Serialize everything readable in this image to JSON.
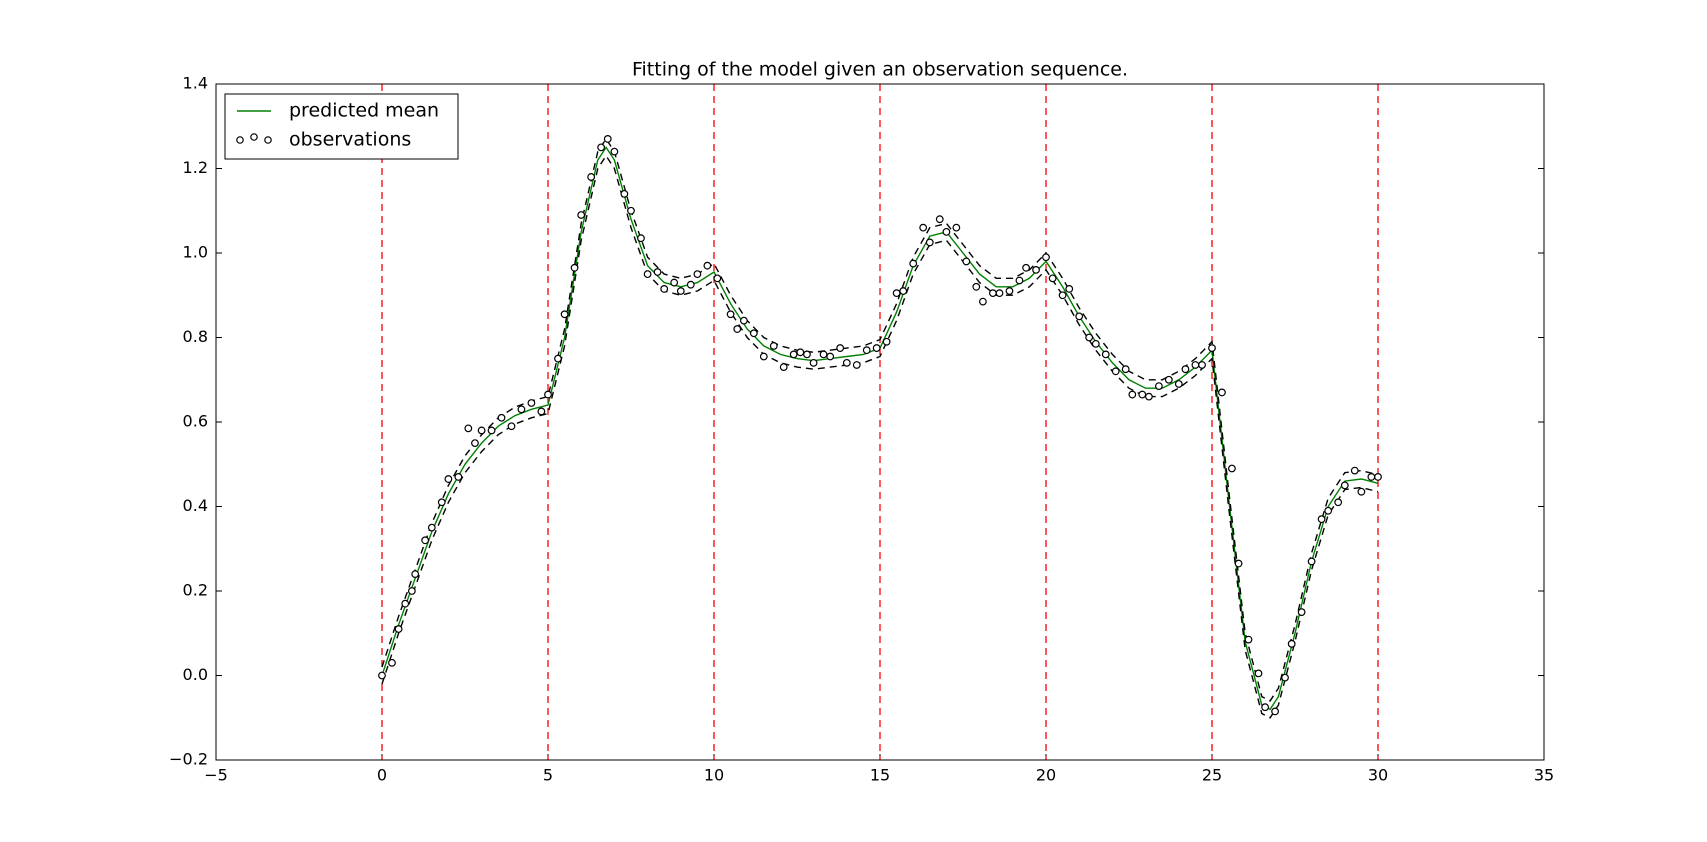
{
  "chart_data": {
    "type": "line",
    "title": "Fitting of the model given an observation sequence.",
    "legend": "upper left",
    "xlim": [
      -5,
      35
    ],
    "ylim": [
      -0.2,
      1.4
    ],
    "xticks": [
      {
        "value": -5,
        "label": "−5"
      },
      0,
      5,
      10,
      15,
      20,
      25,
      30,
      35
    ],
    "yticks": [
      {
        "value": -0.2,
        "label": "−0.2"
      },
      {
        "value": 0,
        "label": "0.0"
      },
      0.2,
      0.4,
      0.6,
      0.8,
      {
        "value": 1,
        "label": "1.0"
      },
      1.2,
      1.4
    ],
    "vlines": {
      "color": "#ff0000",
      "x": [
        0,
        5,
        10,
        15,
        20,
        25,
        30
      ]
    },
    "x": [
      0,
      0.5,
      1,
      1.5,
      2,
      2.5,
      3,
      3.5,
      4,
      4.5,
      5,
      5.5,
      6,
      6.5,
      6.75,
      7,
      7.5,
      8,
      8.5,
      9,
      9.5,
      10,
      10.5,
      11,
      11.5,
      12,
      12.5,
      13,
      13.5,
      14,
      14.5,
      15,
      15.5,
      16,
      16.5,
      17,
      17.5,
      18,
      18.5,
      19,
      19.5,
      20,
      20.5,
      21,
      21.5,
      22,
      22.5,
      23,
      23.5,
      24,
      24.5,
      25,
      25.5,
      26,
      26.5,
      26.75,
      27,
      27.5,
      28,
      28.5,
      29,
      29.5,
      30
    ],
    "series": [
      {
        "name": "predicted mean",
        "color": "#008000",
        "values": [
          0,
          0.12,
          0.23,
          0.34,
          0.43,
          0.5,
          0.55,
          0.59,
          0.615,
          0.63,
          0.64,
          0.8,
          1.05,
          1.22,
          1.25,
          1.22,
          1.08,
          0.97,
          0.93,
          0.92,
          0.93,
          0.955,
          0.88,
          0.82,
          0.78,
          0.76,
          0.75,
          0.745,
          0.75,
          0.755,
          0.76,
          0.775,
          0.86,
          0.97,
          1.04,
          1.05,
          1.0,
          0.95,
          0.92,
          0.92,
          0.94,
          0.98,
          0.92,
          0.85,
          0.79,
          0.74,
          0.7,
          0.68,
          0.68,
          0.7,
          0.73,
          0.77,
          0.42,
          0.08,
          -0.07,
          -0.08,
          -0.05,
          0.1,
          0.27,
          0.4,
          0.46,
          0.465,
          0.455
        ]
      },
      {
        "color": "#000000",
        "dashed": true,
        "values": [
          0.02,
          0.14,
          0.25,
          0.36,
          0.45,
          0.52,
          0.57,
          0.61,
          0.635,
          0.65,
          0.66,
          0.82,
          1.07,
          1.24,
          1.27,
          1.24,
          1.1,
          0.99,
          0.95,
          0.94,
          0.95,
          0.975,
          0.9,
          0.84,
          0.8,
          0.78,
          0.77,
          0.765,
          0.77,
          0.775,
          0.78,
          0.795,
          0.88,
          0.99,
          1.06,
          1.07,
          1.02,
          0.97,
          0.94,
          0.94,
          0.96,
          1.0,
          0.94,
          0.87,
          0.81,
          0.76,
          0.72,
          0.7,
          0.7,
          0.72,
          0.75,
          0.79,
          0.44,
          0.1,
          -0.05,
          -0.06,
          -0.03,
          0.12,
          0.29,
          0.42,
          0.48,
          0.485,
          0.475
        ]
      },
      {
        "color": "#000000",
        "dashed": true,
        "values": [
          -0.02,
          0.1,
          0.21,
          0.32,
          0.41,
          0.48,
          0.53,
          0.57,
          0.595,
          0.61,
          0.62,
          0.78,
          1.03,
          1.2,
          1.23,
          1.2,
          1.06,
          0.95,
          0.91,
          0.9,
          0.91,
          0.935,
          0.86,
          0.8,
          0.76,
          0.74,
          0.73,
          0.725,
          0.73,
          0.735,
          0.74,
          0.755,
          0.84,
          0.95,
          1.02,
          1.03,
          0.98,
          0.93,
          0.9,
          0.9,
          0.92,
          0.96,
          0.9,
          0.83,
          0.77,
          0.72,
          0.68,
          0.66,
          0.66,
          0.68,
          0.71,
          0.75,
          0.4,
          0.06,
          -0.09,
          -0.1,
          -0.07,
          0.08,
          0.25,
          0.38,
          0.44,
          0.445,
          0.435
        ]
      }
    ],
    "observations": {
      "name": "observations",
      "color": "#000000",
      "x": [
        0,
        0.3,
        0.5,
        0.7,
        0.9,
        1.0,
        1.3,
        1.5,
        1.8,
        2.0,
        2.3,
        2.6,
        2.8,
        3.0,
        3.3,
        3.6,
        3.9,
        4.2,
        4.5,
        4.8,
        5.0,
        5.3,
        5.5,
        5.8,
        6.0,
        6.3,
        6.6,
        6.8,
        7.0,
        7.3,
        7.5,
        7.8,
        8.0,
        8.3,
        8.5,
        8.8,
        9.0,
        9.3,
        9.5,
        9.8,
        10.1,
        10.5,
        10.7,
        10.9,
        11.2,
        11.5,
        11.8,
        12.1,
        12.4,
        12.6,
        12.8,
        13.0,
        13.3,
        13.5,
        13.8,
        14.0,
        14.3,
        14.6,
        14.9,
        15.2,
        15.5,
        15.7,
        16.0,
        16.3,
        16.5,
        16.8,
        17.0,
        17.3,
        17.6,
        17.9,
        18.1,
        18.4,
        18.6,
        18.9,
        19.2,
        19.4,
        19.7,
        20.0,
        20.2,
        20.5,
        20.7,
        21.0,
        21.3,
        21.5,
        21.8,
        22.1,
        22.4,
        22.6,
        22.9,
        23.1,
        23.4,
        23.7,
        24.0,
        24.2,
        24.5,
        24.7,
        25.0,
        25.3,
        25.6,
        25.8,
        26.1,
        26.4,
        26.6,
        26.9,
        27.2,
        27.4,
        27.7,
        28.0,
        28.3,
        28.5,
        28.8,
        29.0,
        29.3,
        29.5,
        29.8,
        30.0
      ],
      "values": [
        0,
        0.03,
        0.11,
        0.17,
        0.2,
        0.24,
        0.32,
        0.35,
        0.41,
        0.465,
        0.47,
        0.585,
        0.55,
        0.58,
        0.58,
        0.61,
        0.59,
        0.63,
        0.645,
        0.625,
        0.665,
        0.75,
        0.855,
        0.965,
        1.09,
        1.18,
        1.25,
        1.27,
        1.24,
        1.14,
        1.1,
        1.035,
        0.95,
        0.955,
        0.915,
        0.93,
        0.91,
        0.925,
        0.95,
        0.97,
        0.94,
        0.855,
        0.82,
        0.84,
        0.81,
        0.755,
        0.78,
        0.73,
        0.76,
        0.765,
        0.76,
        0.74,
        0.76,
        0.755,
        0.775,
        0.74,
        0.735,
        0.77,
        0.775,
        0.79,
        0.905,
        0.91,
        0.975,
        1.06,
        1.025,
        1.08,
        1.05,
        1.06,
        0.98,
        0.92,
        0.885,
        0.905,
        0.905,
        0.91,
        0.935,
        0.965,
        0.96,
        0.99,
        0.94,
        0.9,
        0.915,
        0.85,
        0.8,
        0.785,
        0.76,
        0.72,
        0.725,
        0.665,
        0.665,
        0.66,
        0.685,
        0.7,
        0.69,
        0.725,
        0.735,
        0.735,
        0.775,
        0.67,
        0.49,
        0.265,
        0.085,
        0.005,
        -0.075,
        -0.085,
        -0.005,
        0.075,
        0.15,
        0.27,
        0.37,
        0.39,
        0.41,
        0.45,
        0.485,
        0.435,
        0.47,
        0.47
      ]
    }
  }
}
